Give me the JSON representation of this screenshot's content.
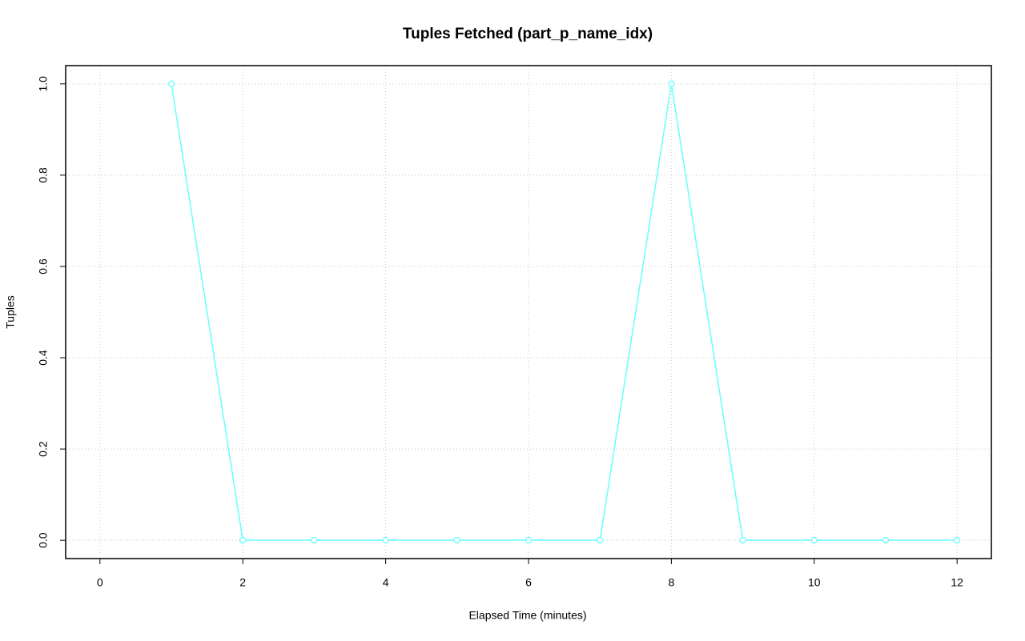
{
  "chart_data": {
    "type": "line",
    "title": "Tuples Fetched (part_p_name_idx)",
    "x_label": "Elapsed Time (minutes)",
    "y_label": "Tuples",
    "x": [
      1,
      2,
      3,
      4,
      5,
      6,
      7,
      8,
      9,
      10,
      11,
      12
    ],
    "series": [
      {
        "name": "part_p_name_idx",
        "color": "#66ffff",
        "values": [
          1,
          0,
          0,
          0,
          0,
          0,
          0,
          1,
          0,
          0,
          0,
          0
        ]
      }
    ],
    "xlim": [
      -0.48,
      12.48
    ],
    "xticks": [
      0,
      2,
      4,
      6,
      8,
      10,
      12
    ],
    "ylim": [
      -0.04,
      1.04
    ],
    "yticks": [
      {
        "value": 0,
        "label": "0.0"
      },
      {
        "value": 0.2,
        "label": "0.2"
      },
      {
        "value": 0.4,
        "label": "0.4"
      },
      {
        "value": 0.6,
        "label": "0.6"
      },
      {
        "value": 0.8,
        "label": "0.8"
      },
      {
        "value": 1,
        "label": "1.0"
      }
    ],
    "grid": true
  }
}
